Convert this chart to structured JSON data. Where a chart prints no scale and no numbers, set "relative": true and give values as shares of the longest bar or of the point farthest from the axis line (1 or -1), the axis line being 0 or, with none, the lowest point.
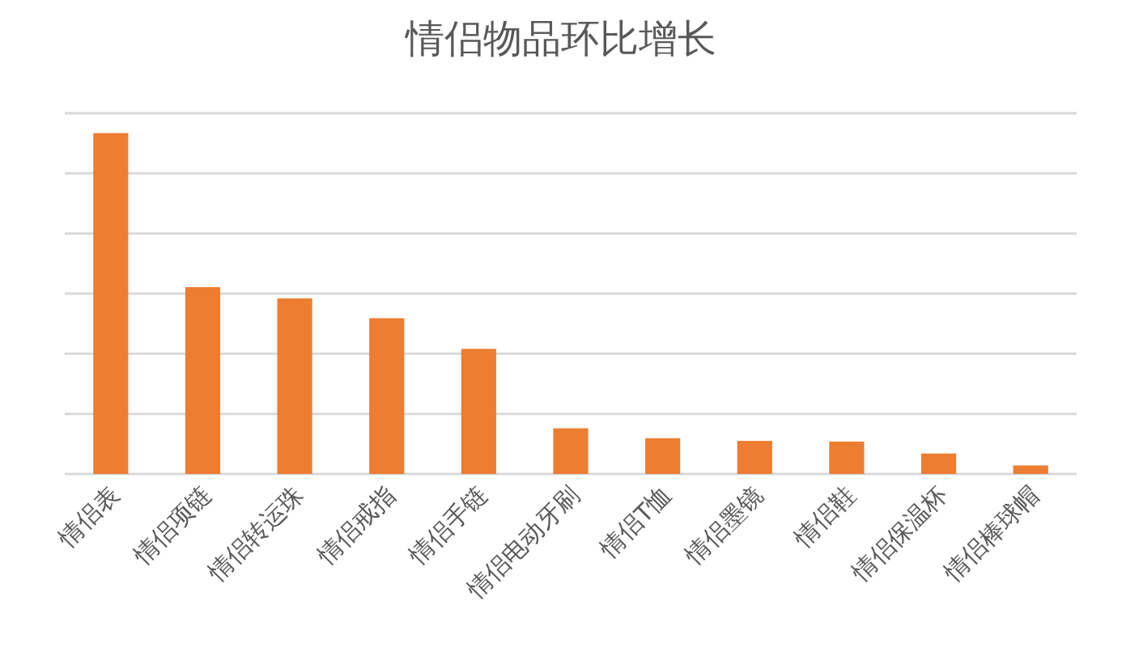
{
  "chart_data": {
    "type": "bar",
    "title": "情侣物品环比增长",
    "relative": true,
    "grid": "y",
    "categories": [
      "情侣表",
      "情侣项链",
      "情侣转运珠",
      "情侣戒指",
      "情侣手链",
      "情侣电动牙刷",
      "情侣T恤",
      "情侣墨镜",
      "情侣鞋",
      "情侣保温杯",
      "情侣棒球帽"
    ],
    "series": [
      {
        "color": "#ed7d31",
        "values": [
          1,
          0.548,
          0.515,
          0.457,
          0.367,
          0.134,
          0.105,
          0.097,
          0.095,
          0.06,
          0.025
        ]
      }
    ]
  }
}
